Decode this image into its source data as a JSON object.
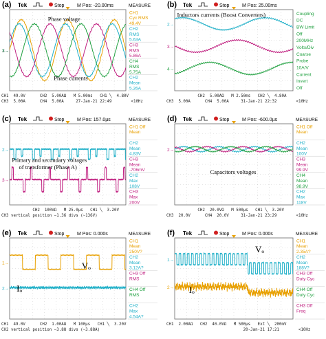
{
  "figure": {
    "panels": [
      {
        "label": "(a)",
        "header": {
          "brand": "Tek",
          "run_state": "Stop",
          "position": "M Pos: -20.00ms",
          "menu": "MEASURE"
        },
        "annotations": [
          "Phase voltage",
          "Phase currents"
        ],
        "side": [
          {
            "text": "CH1",
            "color": "#e8a000"
          },
          {
            "text": "Cyc RMS",
            "color": "#e8a000"
          },
          {
            "text": "49.4V",
            "color": "#e8a000"
          },
          {
            "text": "CH2",
            "color": "#20b0c8"
          },
          {
            "text": "RMS",
            "color": "#20b0c8"
          },
          {
            "text": "5.63A",
            "color": "#20b0c8"
          },
          {
            "text": "CH3",
            "color": "#c02080"
          },
          {
            "text": "RMS",
            "color": "#c02080"
          },
          {
            "text": "5.86A",
            "color": "#c02080"
          },
          {
            "text": "CH4",
            "color": "#20a040"
          },
          {
            "text": "RMS",
            "color": "#20a040"
          },
          {
            "text": "5.75A",
            "color": "#20a040"
          },
          {
            "text": "CH2",
            "color": "#20b0c8"
          },
          {
            "text": "Mean",
            "color": "#20b0c8"
          },
          {
            "text": "5.26A",
            "color": "#20b0c8"
          }
        ],
        "footer": [
          "CH1  49.0V      CH2  5.00AΩ   M 5.00ms   CH1 ╲  4.80V",
          "CH3  5.00A      CH4  5.00A     27-Jan-21 22:49        <10Hz"
        ],
        "markers": [
          "1→",
          "2→",
          "3→"
        ]
      },
      {
        "label": "(b)",
        "header": {
          "brand": "Tek",
          "run_state": "Stop",
          "position": "M Pos: 25.00ms",
          "menu": ""
        },
        "annotations": [
          "Inductors currents (Boost Converters)"
        ],
        "side": [
          {
            "text": "Coupling",
            "color": "#20a040"
          },
          {
            "text": "DC",
            "color": "#20a040"
          },
          {
            "text": "BW Limit",
            "color": "#20a040"
          },
          {
            "text": "Off",
            "color": "#20a040"
          },
          {
            "text": "200MHz",
            "color": "#20a040"
          },
          {
            "text": "Volts/Div",
            "color": "#20a040"
          },
          {
            "text": "Coarse",
            "color": "#20a040"
          },
          {
            "text": "Probe",
            "color": "#20a040"
          },
          {
            "text": "10A/V",
            "color": "#20a040"
          },
          {
            "text": "Current",
            "color": "#20a040"
          },
          {
            "text": "Invert",
            "color": "#20a040"
          },
          {
            "text": "Off",
            "color": "#20a040"
          }
        ],
        "footer": [
          "             CH2  5.00AΩ   M 2.50ms   CH2 ╲  4.80A",
          "CH3  5.00A      CH4  5.00A     31-Jan-21 22:32        <10Hz"
        ],
        "markers": [
          "2→",
          "3→",
          "4→"
        ]
      },
      {
        "label": "(c)",
        "header": {
          "brand": "Tek",
          "run_state": "Stop",
          "position": "M Pos: 157.0µs",
          "menu": "MEASURE"
        },
        "annotations": [
          "Primary and secondary voltages",
          "of transformer (Phase A)"
        ],
        "side": [
          {
            "text": "CH1 Off",
            "color": "#e8a000"
          },
          {
            "text": "Mean",
            "color": "#e8a000"
          },
          {
            "text": "",
            "color": "#e8a000"
          },
          {
            "text": "CH2",
            "color": "#20b0c8"
          },
          {
            "text": "Mean",
            "color": "#20b0c8"
          },
          {
            "text": "4.83V",
            "color": "#20b0c8"
          },
          {
            "text": "CH3",
            "color": "#c02080"
          },
          {
            "text": "Mean",
            "color": "#c02080"
          },
          {
            "text": "-706mV",
            "color": "#c02080"
          },
          {
            "text": "CH2",
            "color": "#20b0c8"
          },
          {
            "text": "Max",
            "color": "#20b0c8"
          },
          {
            "text": "108V",
            "color": "#20b0c8"
          },
          {
            "text": "CH3",
            "color": "#c02080"
          },
          {
            "text": "Max",
            "color": "#c02080"
          },
          {
            "text": "200V",
            "color": "#c02080"
          }
        ],
        "footer": [
          "             CH2  100VΩ   M 25.0µs   CH1 ╲  3.20V",
          "CH3 vertical position −1.36 divs (∼136V)"
        ],
        "markers": [
          "2→",
          "3→"
        ]
      },
      {
        "label": "(d)",
        "header": {
          "brand": "Tek",
          "run_state": "Stop",
          "position": "M Pos: -600.0µs",
          "menu": "MEASURE"
        },
        "annotations": [
          "Capacitors voltages"
        ],
        "side": [
          {
            "text": "CH1 Off",
            "color": "#e8a000"
          },
          {
            "text": "Mean",
            "color": "#e8a000"
          },
          {
            "text": "",
            "color": "#e8a000"
          },
          {
            "text": "CH2",
            "color": "#20b0c8"
          },
          {
            "text": "Mean",
            "color": "#20b0c8"
          },
          {
            "text": "100V",
            "color": "#20b0c8"
          },
          {
            "text": "CH3",
            "color": "#c02080"
          },
          {
            "text": "Mean",
            "color": "#c02080"
          },
          {
            "text": "99.9V",
            "color": "#c02080"
          },
          {
            "text": "CH4",
            "color": "#20a040"
          },
          {
            "text": "Mean",
            "color": "#20a040"
          },
          {
            "text": "98.9V",
            "color": "#20a040"
          },
          {
            "text": "CH2",
            "color": "#20b0c8"
          },
          {
            "text": "Max",
            "color": "#20b0c8"
          },
          {
            "text": "118V",
            "color": "#20b0c8"
          }
        ],
        "footer": [
          "             CH2  20.0VΩ   M 500µs   CH1 ╲  3.20V",
          "CH3  20.0V      CH4  20.0V     31-Jan-21 23:29        <10Hz"
        ],
        "markers": [
          "2→"
        ]
      },
      {
        "label": "(e)",
        "header": {
          "brand": "Tek",
          "run_state": "Stop",
          "position": "M Pos: 0.000s",
          "menu": "MEASURE"
        },
        "annotations": [
          "Vₒ",
          "Iₒ"
        ],
        "side": [
          {
            "text": "CH1",
            "color": "#e8a000"
          },
          {
            "text": "Mean",
            "color": "#e8a000"
          },
          {
            "text": "250V?",
            "color": "#e8a000"
          },
          {
            "text": "CH2",
            "color": "#20b0c8"
          },
          {
            "text": "Mean",
            "color": "#20b0c8"
          },
          {
            "text": "3.12A?",
            "color": "#20b0c8"
          },
          {
            "text": "CH3 Off",
            "color": "#c02080"
          },
          {
            "text": "RMS",
            "color": "#c02080"
          },
          {
            "text": "",
            "color": "#c02080"
          },
          {
            "text": "CH4 Off",
            "color": "#20a040"
          },
          {
            "text": "RMS",
            "color": "#20a040"
          },
          {
            "text": "",
            "color": "#20a040"
          },
          {
            "text": "CH2",
            "color": "#20b0c8"
          },
          {
            "text": "Max",
            "color": "#20b0c8"
          },
          {
            "text": "4.54A?",
            "color": "#20b0c8"
          }
        ],
        "footer": [
          "CH1  49.0V      CH2  1.00AΩ   M 100µs   CH1 ╲  3.20V",
          "CH2 vertical position −3.88 divs (∼3.88A)"
        ],
        "markers": [
          "1→",
          "2→"
        ]
      },
      {
        "label": "(f)",
        "header": {
          "brand": "Tek",
          "run_state": "Stop",
          "position": "M Pos: 0.000s",
          "menu": "MEASURE"
        },
        "annotations": [
          "Vₒ",
          "Iₒ"
        ],
        "side": [
          {
            "text": "CH1",
            "color": "#e8a000"
          },
          {
            "text": "Mean",
            "color": "#e8a000"
          },
          {
            "text": "2.35A?",
            "color": "#e8a000"
          },
          {
            "text": "CH2",
            "color": "#20b0c8"
          },
          {
            "text": "Mean",
            "color": "#20b0c8"
          },
          {
            "text": "188V?",
            "color": "#20b0c8"
          },
          {
            "text": "CH3 Off",
            "color": "#c02080"
          },
          {
            "text": "Duty Cyc",
            "color": "#c02080"
          },
          {
            "text": "",
            "color": "#c02080"
          },
          {
            "text": "CH4 Off",
            "color": "#20a040"
          },
          {
            "text": "Duty Cyc",
            "color": "#20a040"
          },
          {
            "text": "",
            "color": "#20a040"
          },
          {
            "text": "CH3 Off",
            "color": "#c02080"
          },
          {
            "text": "Freq",
            "color": "#c02080"
          },
          {
            "text": "",
            "color": "#c02080"
          }
        ],
        "footer": [
          "CH1  2.00AΩ   CH2  40.0VΩ   M 500µs   Ext ╲  200mV",
          "                                20-Jan-21 17:21        <10Hz"
        ],
        "markers": [
          "1→",
          "2→"
        ]
      }
    ]
  },
  "chart_data": [
    {
      "type": "line",
      "panel": "(a)",
      "x_unit": "ms",
      "x_range": [
        0,
        50
      ],
      "series": [
        {
          "name": "Phase voltage",
          "color": "#e8a000",
          "shape": "sine",
          "amplitude": 3.0,
          "period_div": 4.0,
          "phase": 0.0,
          "offset": 0.0
        },
        {
          "name": "CH2",
          "color": "#20b0c8",
          "shape": "sine",
          "amplitude": 2.6,
          "period_div": 4.0,
          "phase": 0.3,
          "offset": 0.0
        },
        {
          "name": "CH3",
          "color": "#c02080",
          "shape": "sine",
          "amplitude": 2.6,
          "period_div": 4.0,
          "phase": 2.4,
          "offset": 0.0
        },
        {
          "name": "CH4",
          "color": "#20a040",
          "shape": "sine",
          "amplitude": 2.6,
          "period_div": 4.0,
          "phase": 4.5,
          "offset": 0.0
        }
      ]
    },
    {
      "type": "line",
      "panel": "(b)",
      "x_unit": "ms",
      "x_range": [
        0,
        25
      ],
      "series": [
        {
          "name": "CH2",
          "color": "#20b0c8",
          "shape": "sine",
          "amplitude": 0.6,
          "period_div": 7.0,
          "phase": 1.0,
          "offset": 2.6
        },
        {
          "name": "CH3",
          "color": "#c02080",
          "shape": "sine",
          "amplitude": 0.6,
          "period_div": 7.0,
          "phase": 3.1,
          "offset": 0.4
        },
        {
          "name": "CH4",
          "color": "#20a040",
          "shape": "sine",
          "amplitude": 0.6,
          "period_div": 7.0,
          "phase": 5.2,
          "offset": -1.8
        }
      ]
    },
    {
      "type": "line",
      "panel": "(c)",
      "x_unit": "µs",
      "x_range": [
        0,
        250
      ],
      "series": [
        {
          "name": "CH2 primary",
          "color": "#20b0c8",
          "shape": "pulse",
          "amplitude": 1.0,
          "period_div": 1.6,
          "phase": 0.0,
          "offset": 1.5
        },
        {
          "name": "CH3 secondary",
          "color": "#c02080",
          "shape": "pulse",
          "amplitude": 1.2,
          "period_div": 1.6,
          "phase": 0.8,
          "offset": -1.5
        }
      ]
    },
    {
      "type": "line",
      "panel": "(d)",
      "x_unit": "ms",
      "x_range": [
        0,
        5
      ],
      "series": [
        {
          "name": "CH2",
          "color": "#20b0c8",
          "shape": "sine",
          "amplitude": 0.25,
          "period_div": 3.0,
          "phase": 0.0,
          "offset": 1.5
        },
        {
          "name": "CH3",
          "color": "#c02080",
          "shape": "sine",
          "amplitude": 0.25,
          "period_div": 3.0,
          "phase": 2.1,
          "offset": 1.5
        },
        {
          "name": "CH4",
          "color": "#20a040",
          "shape": "sine",
          "amplitude": 0.25,
          "period_div": 3.0,
          "phase": 4.2,
          "offset": 1.5
        }
      ]
    },
    {
      "type": "line",
      "panel": "(e)",
      "x_unit": "µs",
      "x_range": [
        0,
        1000
      ],
      "series": [
        {
          "name": "Vₒ",
          "color": "#e8a000",
          "shape": "square",
          "amplitude": 1.4,
          "period_div": 2.2,
          "phase": 0.0,
          "offset": 1.6
        },
        {
          "name": "Iₒ",
          "color": "#20b0c8",
          "shape": "noise",
          "amplitude": 0.18,
          "period_div": 0.5,
          "phase": 0.0,
          "offset": -0.9
        }
      ]
    },
    {
      "type": "line",
      "panel": "(f)",
      "x_unit": "ms",
      "x_range": [
        0,
        5
      ],
      "series": [
        {
          "name": "Vₒ",
          "color": "#20b0c8",
          "shape": "steppulse",
          "amplitude": 1.1,
          "period_div": 0.35,
          "phase": 0.0,
          "offset": 1.9
        },
        {
          "name": "Iₒ",
          "color": "#e8a000",
          "shape": "stepnoise",
          "amplitude": 0.5,
          "period_div": 0.5,
          "phase": 0.0,
          "offset": -0.8
        }
      ]
    }
  ]
}
